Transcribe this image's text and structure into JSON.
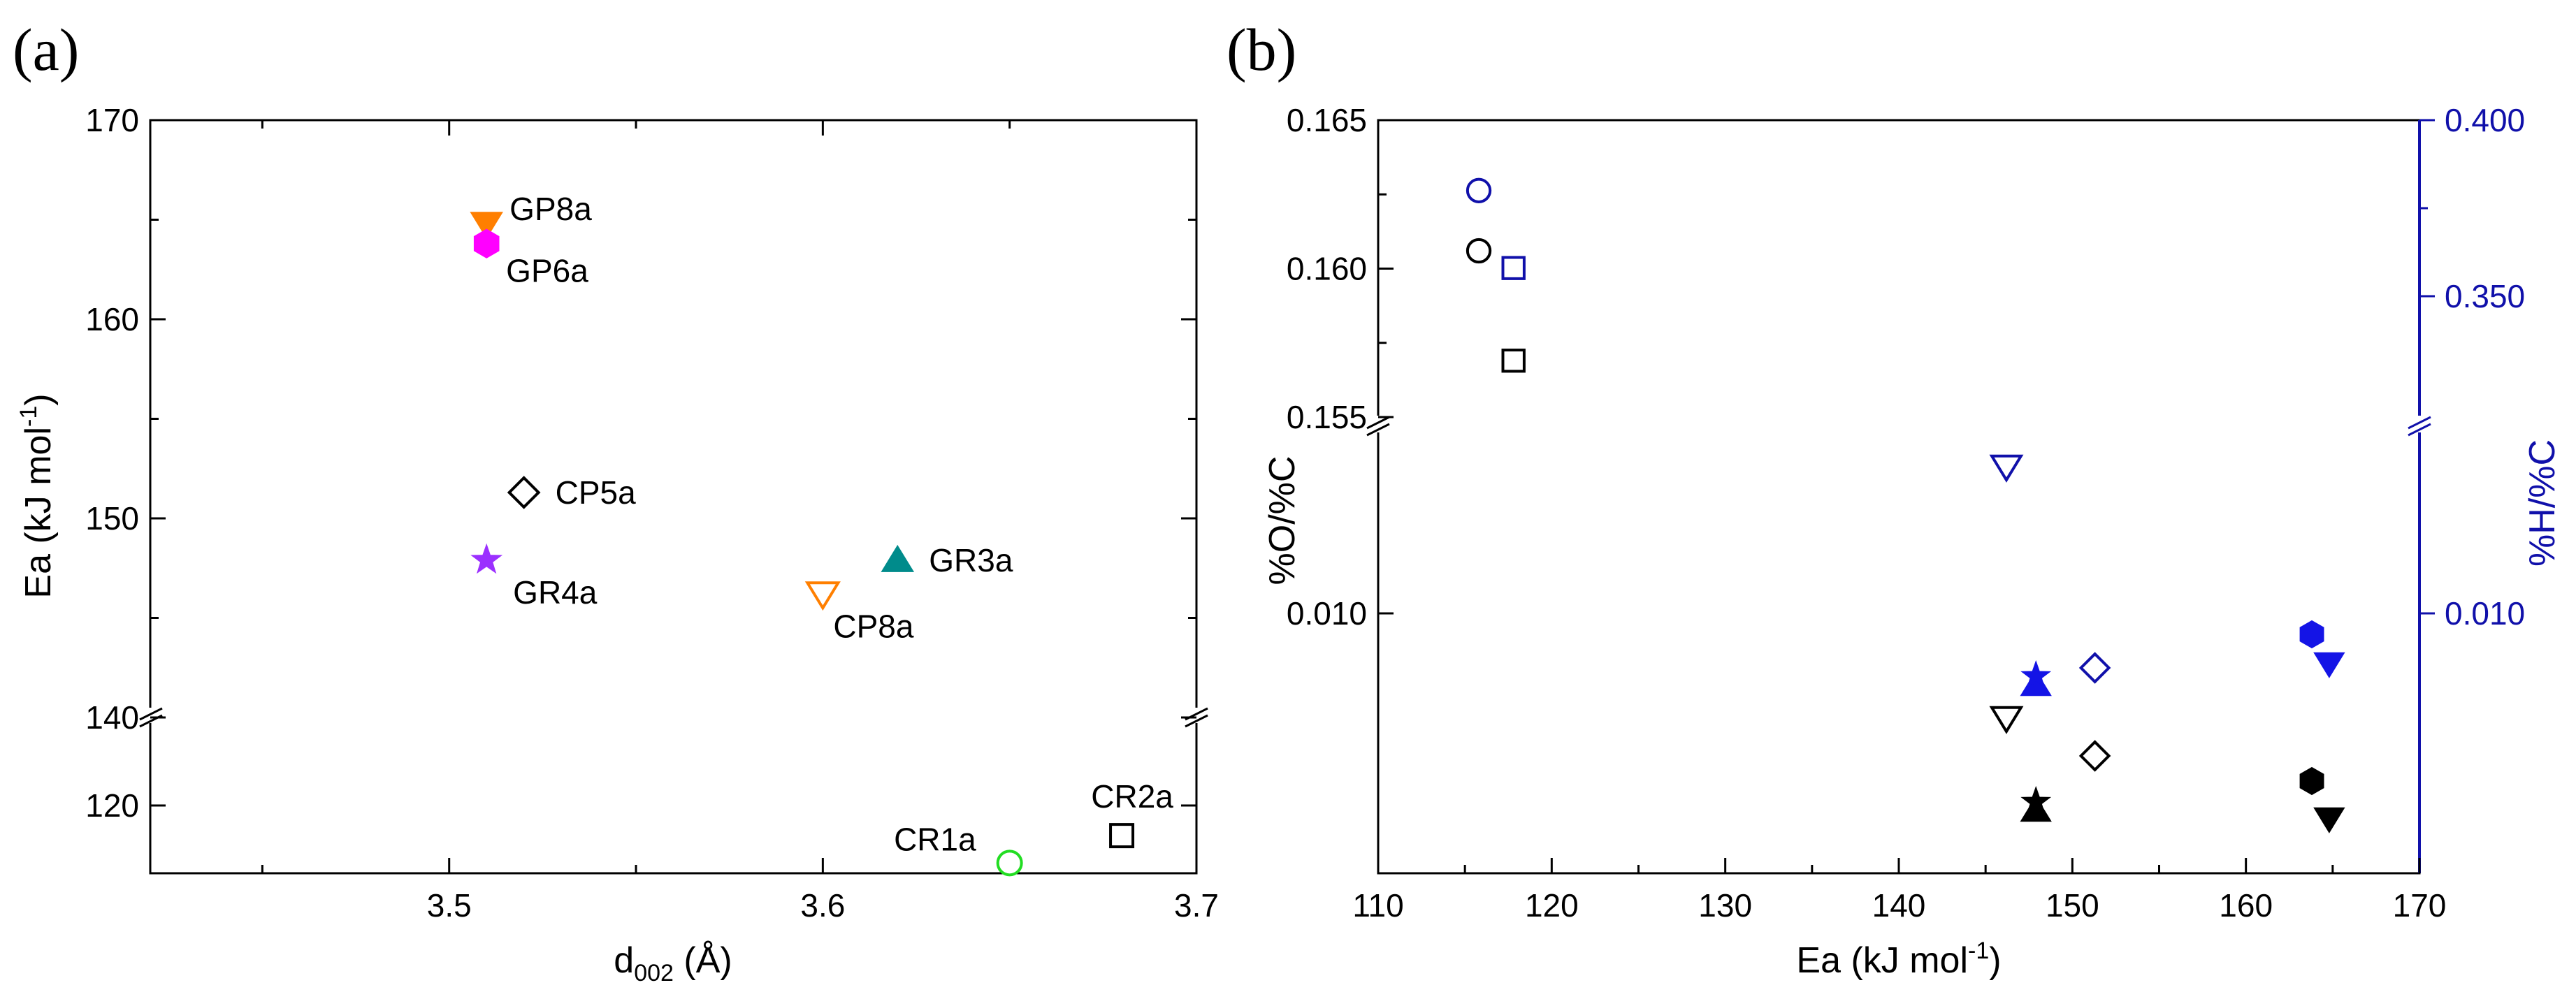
{
  "chart_data": [
    {
      "panel_label": "(a)",
      "type": "scatter",
      "xlabel_main": "d",
      "xlabel_sub": "002",
      "xlabel_unit": " (Å)",
      "ylabel": "Ea (kJ mol",
      "ylabel_sup": "-1",
      "ylabel_end": ")",
      "xlim": [
        3.42,
        3.7
      ],
      "x_ticks": [
        "3.5",
        "3.6",
        "3.7"
      ],
      "y_segments": [
        {
          "range": [
            115,
            125
          ],
          "ticks": [
            "120"
          ]
        },
        {
          "range": [
            140,
            170
          ],
          "ticks": [
            "140",
            "150",
            "160",
            "170"
          ]
        }
      ],
      "points": [
        {
          "name": "GP8a",
          "x": 3.51,
          "y": 164.8,
          "marker": "triangle-down",
          "filled": true,
          "color": "#ff7f00"
        },
        {
          "name": "GP6a",
          "x": 3.51,
          "y": 163.8,
          "marker": "hexagon",
          "filled": true,
          "color": "#ff00ff"
        },
        {
          "name": "CP5a",
          "x": 3.52,
          "y": 151.3,
          "marker": "diamond",
          "filled": false,
          "color": "#000000"
        },
        {
          "name": "GR4a",
          "x": 3.51,
          "y": 147.9,
          "marker": "star",
          "filled": true,
          "color": "#9b30ff"
        },
        {
          "name": "CP8a",
          "x": 3.6,
          "y": 146.2,
          "marker": "triangle-down",
          "filled": false,
          "color": "#ff7f00"
        },
        {
          "name": "GR3a",
          "x": 3.62,
          "y": 147.9,
          "marker": "triangle-up",
          "filled": true,
          "color": "#008b8b"
        },
        {
          "name": "CR1a",
          "x": 3.65,
          "y": 115.8,
          "marker": "circle",
          "filled": false,
          "color": "#22dd22"
        },
        {
          "name": "CR2a",
          "x": 3.68,
          "y": 117.8,
          "marker": "square",
          "filled": false,
          "color": "#000000"
        }
      ]
    },
    {
      "panel_label": "(b)",
      "type": "scatter",
      "xlabel": "Ea (kJ mol",
      "xlabel_sup": "-1",
      "xlabel_end": ")",
      "ylabel_left": "%O/%C",
      "ylabel_right": "%H/%C",
      "xlim": [
        110,
        170
      ],
      "x_ticks": [
        "110",
        "120",
        "130",
        "140",
        "150",
        "160",
        "170"
      ],
      "y_left_ticks": [
        "0.165",
        "0.160",
        "0.155",
        "0.010"
      ],
      "y_right_ticks": [
        "0.400",
        "0.350",
        "0.010"
      ],
      "colors": {
        "left": "#000000",
        "right": "#1010aa",
        "right_filled": "#1414e6"
      },
      "series": [
        {
          "name": "%O/%C",
          "points": [
            {
              "x": 115.8,
              "y": 0.1606,
              "marker": "circle",
              "filled": false
            },
            {
              "x": 117.8,
              "y": 0.1569,
              "marker": "square",
              "filled": false
            },
            {
              "x": 146.2,
              "y": 0.0075,
              "marker": "triangle-down",
              "filled": false
            },
            {
              "x": 147.9,
              "y": 0.0053,
              "marker": "triangle-up",
              "filled": true
            },
            {
              "x": 147.9,
              "y": 0.0055,
              "marker": "star",
              "filled": true
            },
            {
              "x": 151.3,
              "y": 0.0066,
              "marker": "diamond",
              "filled": false
            },
            {
              "x": 163.8,
              "y": 0.006,
              "marker": "hexagon",
              "filled": true
            },
            {
              "x": 164.8,
              "y": 0.0051,
              "marker": "triangle-down",
              "filled": true
            }
          ]
        },
        {
          "name": "%H/%C",
          "points": [
            {
              "x": 115.8,
              "y": 0.38,
              "marker": "circle",
              "filled": false
            },
            {
              "x": 117.8,
              "y": 0.358,
              "marker": "square",
              "filled": false
            },
            {
              "x": 146.2,
              "y": 0.0135,
              "marker": "triangle-down",
              "filled": false
            },
            {
              "x": 147.9,
              "y": 0.0083,
              "marker": "triangle-up",
              "filled": true
            },
            {
              "x": 147.9,
              "y": 0.0085,
              "marker": "star",
              "filled": true
            },
            {
              "x": 151.3,
              "y": 0.0087,
              "marker": "diamond",
              "filled": false
            },
            {
              "x": 163.8,
              "y": 0.0095,
              "marker": "hexagon",
              "filled": true
            },
            {
              "x": 164.8,
              "y": 0.0088,
              "marker": "triangle-down",
              "filled": true
            }
          ]
        }
      ]
    }
  ]
}
